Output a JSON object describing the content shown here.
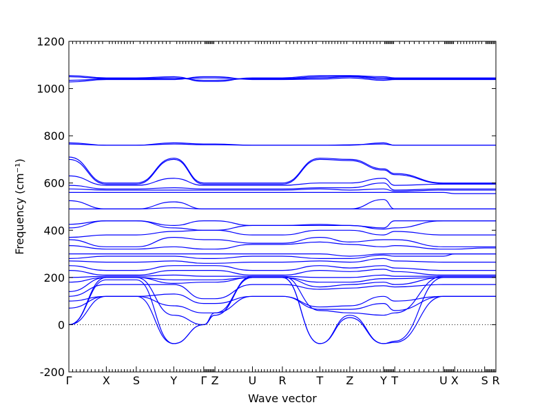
{
  "chart_data": {
    "type": "line",
    "title": "",
    "xlabel": "Wave vector",
    "ylabel": "Frequency (cm⁻¹)",
    "ylim": [
      -200,
      1200
    ],
    "yticks": [
      -200,
      0,
      200,
      400,
      600,
      800,
      1000,
      1200
    ],
    "grid": false,
    "x_points": [
      {
        "label": "Γ",
        "x": 0.0
      },
      {
        "label": "X",
        "x": 1.0
      },
      {
        "label": "S",
        "x": 1.8
      },
      {
        "label": "Y",
        "x": 2.8
      },
      {
        "label": "Γ",
        "x": 3.6
      },
      {
        "label": "Z",
        "x": 3.9
      },
      {
        "label": "U",
        "x": 4.9
      },
      {
        "label": "R",
        "x": 5.7
      },
      {
        "label": "T",
        "x": 6.7
      },
      {
        "label": "Z",
        "x": 7.5
      },
      {
        "label": "Y",
        "x": 8.4
      },
      {
        "label": "T",
        "x": 8.7
      },
      {
        "label": "U",
        "x": 10.0
      },
      {
        "label": "X",
        "x": 10.3
      },
      {
        "label": "S",
        "x": 11.1
      },
      {
        "label": "R",
        "x": 11.4
      }
    ],
    "zero_line": 0,
    "series_color": "#0000ff",
    "bands": [
      [
        1055,
        1045,
        1045,
        1050,
        1030,
        1030,
        1045,
        1045,
        1055,
        1055,
        1050,
        1045,
        1045,
        1045,
        1045,
        1045
      ],
      [
        1050,
        1042,
        1042,
        1045,
        1035,
        1035,
        1042,
        1042,
        1050,
        1052,
        1045,
        1042,
        1042,
        1042,
        1042,
        1042
      ],
      [
        1035,
        1040,
        1040,
        1040,
        1045,
        1045,
        1040,
        1040,
        1045,
        1050,
        1040,
        1040,
        1040,
        1040,
        1040,
        1040
      ],
      [
        1028,
        1038,
        1038,
        1038,
        1050,
        1050,
        1038,
        1038,
        1040,
        1045,
        1035,
        1038,
        1038,
        1038,
        1038,
        1038
      ],
      [
        770,
        760,
        760,
        770,
        765,
        765,
        760,
        760,
        760,
        760,
        770,
        760,
        760,
        760,
        760,
        760
      ],
      [
        765,
        760,
        760,
        765,
        762,
        762,
        760,
        760,
        760,
        762,
        765,
        760,
        760,
        760,
        760,
        760
      ],
      [
        710,
        600,
        600,
        705,
        600,
        600,
        600,
        600,
        705,
        700,
        660,
        640,
        600,
        600,
        600,
        600
      ],
      [
        700,
        595,
        595,
        700,
        595,
        595,
        595,
        595,
        700,
        695,
        655,
        635,
        598,
        598,
        598,
        598
      ],
      [
        630,
        590,
        590,
        620,
        590,
        590,
        590,
        590,
        600,
        600,
        620,
        590,
        595,
        595,
        595,
        595
      ],
      [
        590,
        575,
        575,
        580,
        575,
        575,
        575,
        575,
        580,
        580,
        600,
        570,
        575,
        575,
        575,
        575
      ],
      [
        575,
        570,
        570,
        570,
        570,
        570,
        570,
        570,
        575,
        570,
        575,
        565,
        570,
        570,
        570,
        570
      ],
      [
        560,
        560,
        560,
        560,
        560,
        560,
        560,
        560,
        560,
        560,
        560,
        560,
        560,
        555,
        555,
        555
      ],
      [
        525,
        490,
        490,
        520,
        490,
        490,
        490,
        490,
        490,
        490,
        530,
        490,
        490,
        490,
        490,
        490
      ],
      [
        490,
        490,
        490,
        495,
        490,
        490,
        490,
        490,
        490,
        490,
        490,
        490,
        490,
        490,
        490,
        490
      ],
      [
        425,
        440,
        440,
        420,
        440,
        440,
        420,
        420,
        425,
        420,
        410,
        440,
        440,
        440,
        440,
        440
      ],
      [
        410,
        440,
        440,
        410,
        400,
        400,
        420,
        420,
        420,
        420,
        405,
        410,
        440,
        440,
        440,
        440
      ],
      [
        370,
        380,
        380,
        395,
        400,
        400,
        380,
        380,
        400,
        400,
        380,
        395,
        380,
        380,
        380,
        380
      ],
      [
        360,
        330,
        330,
        370,
        360,
        360,
        345,
        345,
        370,
        350,
        360,
        360,
        330,
        330,
        330,
        330
      ],
      [
        335,
        320,
        320,
        330,
        320,
        320,
        340,
        340,
        350,
        340,
        330,
        335,
        320,
        320,
        325,
        325
      ],
      [
        300,
        300,
        300,
        300,
        300,
        300,
        300,
        300,
        300,
        290,
        300,
        300,
        300,
        300,
        300,
        300
      ],
      [
        280,
        290,
        290,
        290,
        280,
        280,
        290,
        290,
        280,
        280,
        295,
        290,
        290,
        300,
        300,
        300
      ],
      [
        270,
        265,
        265,
        270,
        260,
        260,
        265,
        265,
        270,
        265,
        280,
        270,
        265,
        265,
        265,
        265
      ],
      [
        250,
        230,
        230,
        250,
        250,
        250,
        230,
        230,
        250,
        240,
        250,
        240,
        230,
        230,
        230,
        230
      ],
      [
        230,
        210,
        210,
        230,
        230,
        230,
        210,
        210,
        230,
        225,
        235,
        225,
        210,
        210,
        210,
        210
      ],
      [
        200,
        205,
        205,
        210,
        205,
        205,
        205,
        205,
        200,
        200,
        210,
        205,
        205,
        205,
        205,
        205
      ],
      [
        180,
        200,
        200,
        190,
        190,
        190,
        200,
        200,
        180,
        180,
        195,
        195,
        200,
        200,
        200,
        200
      ],
      [
        140,
        200,
        200,
        175,
        180,
        180,
        200,
        200,
        160,
        170,
        180,
        170,
        200,
        200,
        200,
        200
      ],
      [
        120,
        170,
        170,
        170,
        110,
        110,
        170,
        170,
        150,
        155,
        165,
        160,
        170,
        170,
        170,
        170
      ],
      [
        100,
        120,
        120,
        130,
        90,
        90,
        120,
        120,
        75,
        80,
        120,
        100,
        120,
        120,
        120,
        120
      ],
      [
        70,
        120,
        120,
        80,
        50,
        50,
        120,
        120,
        65,
        65,
        90,
        60,
        120,
        120,
        120,
        120
      ],
      [
        0,
        120,
        120,
        -80,
        0,
        50,
        200,
        200,
        -80,
        40,
        -80,
        -75,
        120,
        120,
        120,
        120
      ],
      [
        0,
        190,
        190,
        -80,
        0,
        40,
        200,
        200,
        -80,
        30,
        -80,
        -70,
        200,
        200,
        200,
        200
      ],
      [
        0,
        200,
        200,
        40,
        0,
        40,
        205,
        205,
        60,
        50,
        40,
        50,
        205,
        205,
        205,
        205
      ]
    ]
  }
}
